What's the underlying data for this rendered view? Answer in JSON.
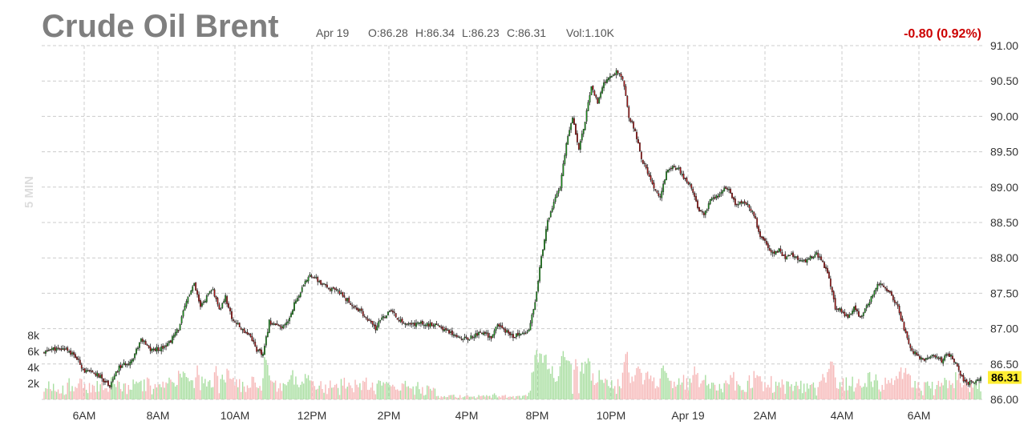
{
  "header": {
    "title": "Crude Oil Brent",
    "date": "Apr 19",
    "open": "O:86.28",
    "high": "H:86.34",
    "low": "L:86.23",
    "close": "C:86.31",
    "volume": "Vol:1.10K",
    "change": "-0.80 (0.92%)",
    "interval_label": "5 MIN"
  },
  "colors": {
    "up": "#1a9a1a",
    "down": "#b01010",
    "up_volume": "#a8dea0",
    "down_volume": "#f6b8b8",
    "change": "#cc0000",
    "last_price_bg": "#ffee33",
    "grid": "#cccccc"
  },
  "chart_data": {
    "type": "candlestick",
    "title": "Crude Oil Brent",
    "interval": "5 MIN",
    "y_ticks": [
      "91.00",
      "90.50",
      "90.00",
      "89.50",
      "89.00",
      "88.50",
      "88.00",
      "87.50",
      "87.00",
      "86.50",
      "86.00"
    ],
    "ylim": [
      86.0,
      91.0
    ],
    "x_ticks": [
      "6AM",
      "8AM",
      "10AM",
      "12PM",
      "2PM",
      "4PM",
      "8PM",
      "10PM",
      "Apr 19",
      "2AM",
      "4AM",
      "6AM"
    ],
    "volume_ticks": [
      "8k",
      "6k",
      "4k",
      "2k"
    ],
    "volume_max": 8000,
    "last_price": "86.31",
    "grid": true,
    "price_path_anchors": [
      [
        0,
        86.65
      ],
      [
        4,
        86.72
      ],
      [
        10,
        86.7
      ],
      [
        14,
        86.72
      ],
      [
        20,
        86.6
      ],
      [
        26,
        86.4
      ],
      [
        34,
        86.35
      ],
      [
        42,
        86.2
      ],
      [
        48,
        86.45
      ],
      [
        56,
        86.55
      ],
      [
        62,
        86.85
      ],
      [
        68,
        86.7
      ],
      [
        74,
        86.72
      ],
      [
        80,
        86.8
      ],
      [
        86,
        87.0
      ],
      [
        92,
        87.45
      ],
      [
        96,
        87.62
      ],
      [
        100,
        87.3
      ],
      [
        104,
        87.45
      ],
      [
        108,
        87.55
      ],
      [
        112,
        87.25
      ],
      [
        116,
        87.45
      ],
      [
        120,
        87.15
      ],
      [
        126,
        87.0
      ],
      [
        132,
        86.9
      ],
      [
        136,
        86.7
      ],
      [
        140,
        86.62
      ],
      [
        144,
        87.1
      ],
      [
        148,
        87.05
      ],
      [
        152,
        87.0
      ],
      [
        156,
        87.1
      ],
      [
        160,
        87.35
      ],
      [
        166,
        87.6
      ],
      [
        170,
        87.78
      ],
      [
        174,
        87.7
      ],
      [
        178,
        87.62
      ],
      [
        184,
        87.55
      ],
      [
        190,
        87.5
      ],
      [
        196,
        87.35
      ],
      [
        202,
        87.25
      ],
      [
        208,
        87.1
      ],
      [
        212,
        87.0
      ],
      [
        216,
        87.15
      ],
      [
        222,
        87.25
      ],
      [
        228,
        87.1
      ],
      [
        234,
        87.05
      ],
      [
        240,
        87.08
      ],
      [
        248,
        87.05
      ],
      [
        254,
        87.02
      ],
      [
        260,
        86.95
      ],
      [
        266,
        86.88
      ],
      [
        270,
        86.85
      ],
      [
        276,
        86.92
      ],
      [
        282,
        86.95
      ],
      [
        286,
        86.85
      ],
      [
        290,
        87.05
      ],
      [
        296,
        86.95
      ],
      [
        300,
        86.9
      ],
      [
        306,
        86.92
      ],
      [
        310,
        87.0
      ],
      [
        314,
        87.4
      ],
      [
        318,
        88.0
      ],
      [
        322,
        88.5
      ],
      [
        326,
        88.8
      ],
      [
        330,
        89.0
      ],
      [
        334,
        89.6
      ],
      [
        338,
        90.0
      ],
      [
        342,
        89.55
      ],
      [
        346,
        89.95
      ],
      [
        350,
        90.4
      ],
      [
        354,
        90.2
      ],
      [
        358,
        90.45
      ],
      [
        362,
        90.55
      ],
      [
        366,
        90.65
      ],
      [
        370,
        90.55
      ],
      [
        374,
        90.0
      ],
      [
        378,
        89.8
      ],
      [
        382,
        89.4
      ],
      [
        386,
        89.2
      ],
      [
        390,
        89.0
      ],
      [
        394,
        88.85
      ],
      [
        398,
        89.2
      ],
      [
        402,
        89.3
      ],
      [
        406,
        89.25
      ],
      [
        410,
        89.1
      ],
      [
        414,
        89.0
      ],
      [
        418,
        88.7
      ],
      [
        422,
        88.6
      ],
      [
        426,
        88.8
      ],
      [
        430,
        88.85
      ],
      [
        434,
        88.95
      ],
      [
        438,
        89.0
      ],
      [
        442,
        88.75
      ],
      [
        446,
        88.8
      ],
      [
        450,
        88.75
      ],
      [
        454,
        88.6
      ],
      [
        458,
        88.3
      ],
      [
        462,
        88.2
      ],
      [
        466,
        88.05
      ],
      [
        470,
        88.1
      ],
      [
        474,
        88.0
      ],
      [
        478,
        88.05
      ],
      [
        482,
        88.0
      ],
      [
        486,
        87.95
      ],
      [
        490,
        88.0
      ],
      [
        494,
        88.05
      ],
      [
        498,
        87.95
      ],
      [
        502,
        87.7
      ],
      [
        506,
        87.3
      ],
      [
        510,
        87.25
      ],
      [
        514,
        87.15
      ],
      [
        518,
        87.3
      ],
      [
        522,
        87.15
      ],
      [
        526,
        87.3
      ],
      [
        530,
        87.5
      ],
      [
        534,
        87.65
      ],
      [
        538,
        87.6
      ],
      [
        542,
        87.45
      ],
      [
        546,
        87.3
      ],
      [
        550,
        87.0
      ],
      [
        554,
        86.7
      ],
      [
        558,
        86.65
      ],
      [
        562,
        86.55
      ],
      [
        566,
        86.62
      ],
      [
        570,
        86.6
      ],
      [
        574,
        86.55
      ],
      [
        578,
        86.65
      ],
      [
        582,
        86.55
      ],
      [
        586,
        86.35
      ],
      [
        590,
        86.22
      ],
      [
        594,
        86.25
      ],
      [
        599,
        86.31
      ]
    ]
  }
}
